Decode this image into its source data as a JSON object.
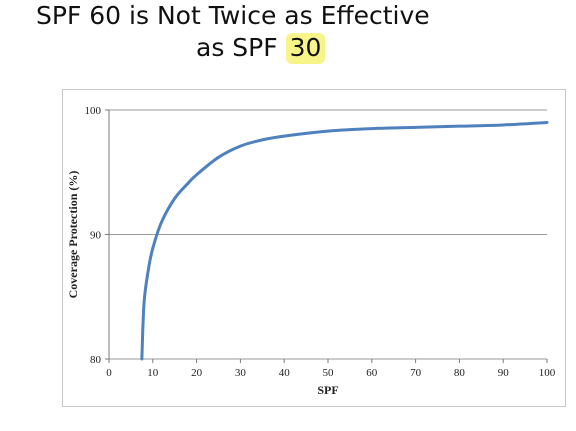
{
  "slide": {
    "title_line1": "SPF 60 is Not Twice as Effective",
    "title_line2_prefix": "as SPF ",
    "title_line2_highlight": "30",
    "highlight_color": "#f7f58a"
  },
  "chart_data": {
    "type": "line",
    "title": "",
    "xlabel": "SPF",
    "ylabel": "Coverage Protection (%)",
    "xlim": [
      0,
      100
    ],
    "ylim": [
      80,
      100
    ],
    "xticks": [
      "0",
      "10",
      "20",
      "30",
      "40",
      "50",
      "60",
      "70",
      "80",
      "90",
      "100"
    ],
    "yticks": [
      "80",
      "90",
      "100"
    ],
    "grid": "horizontal",
    "line_color": "#4f81bd",
    "series": [
      {
        "x": [
          7.5,
          8,
          9,
          10,
          12,
          15,
          18,
          20,
          25,
          30,
          35,
          40,
          50,
          60,
          70,
          80,
          90,
          100
        ],
        "y": [
          80.0,
          84.5,
          87.2,
          88.9,
          91.0,
          92.9,
          94.1,
          94.8,
          96.2,
          97.1,
          97.6,
          97.9,
          98.3,
          98.5,
          98.6,
          98.7,
          98.8,
          99.0
        ]
      }
    ]
  }
}
